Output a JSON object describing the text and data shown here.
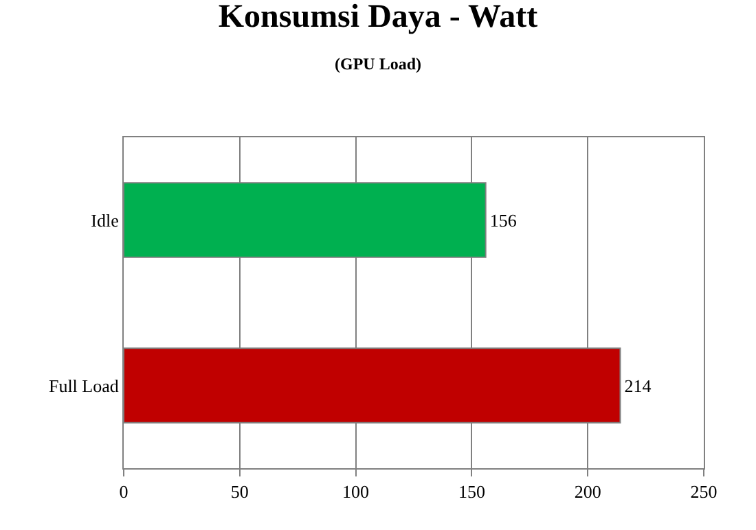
{
  "chart_data": {
    "type": "bar",
    "orientation": "horizontal",
    "title": "Konsumsi Daya - Watt",
    "subtitle": "(GPU Load)",
    "categories": [
      "Idle",
      "Full Load"
    ],
    "values": [
      156,
      214
    ],
    "colors": [
      "#00b050",
      "#c00000"
    ],
    "xlim": [
      0,
      250
    ],
    "xticks": [
      0,
      50,
      100,
      150,
      200,
      250
    ],
    "grid": "x",
    "data_labels": true
  }
}
